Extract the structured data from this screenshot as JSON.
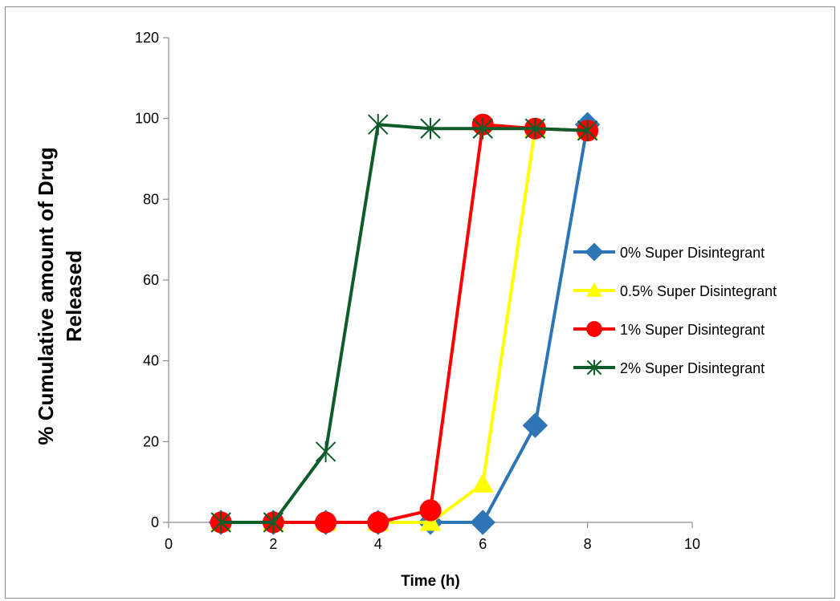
{
  "chart_data": {
    "type": "line",
    "title": "",
    "xlabel": "Time (h)",
    "ylabel_lines": [
      "% Cumulative amount of Drug",
      "Released"
    ],
    "xlim": [
      0,
      10
    ],
    "ylim": [
      0,
      120
    ],
    "xticks": [
      0,
      2,
      4,
      6,
      8,
      10
    ],
    "yticks": [
      0,
      20,
      40,
      60,
      80,
      100,
      120
    ],
    "grid": false,
    "legend_position": "right",
    "series": [
      {
        "name": "0% Super Disintegrant",
        "color": "#2e75b6",
        "marker": "diamond",
        "x": [
          1,
          2,
          3,
          4,
          5,
          6,
          7,
          8
        ],
        "y": [
          0,
          0,
          0,
          0,
          0,
          0,
          24,
          98.5
        ]
      },
      {
        "name": "0.5% Super Disintegrant",
        "color": "#ffff00",
        "marker": "triangle",
        "x": [
          1,
          2,
          3,
          4,
          5,
          6,
          7,
          8
        ],
        "y": [
          0,
          0,
          0,
          0,
          0,
          9.5,
          97.5,
          97
        ]
      },
      {
        "name": "1% Super Disintegrant",
        "color": "#ff0000",
        "marker": "circle",
        "x": [
          1,
          2,
          3,
          4,
          5,
          6,
          7,
          8
        ],
        "y": [
          0,
          0,
          0,
          0,
          3,
          98.5,
          97.5,
          97
        ]
      },
      {
        "name": "2% Super Disintegrant",
        "color": "#0e5c2a",
        "marker": "star",
        "x": [
          1,
          2,
          3,
          4,
          5,
          6,
          7,
          8
        ],
        "y": [
          0,
          0,
          17.5,
          98.5,
          97.5,
          97.5,
          97.5,
          97
        ]
      }
    ]
  }
}
